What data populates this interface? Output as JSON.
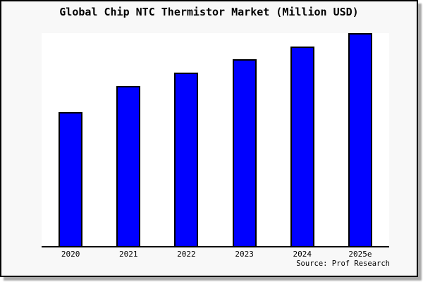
{
  "chart_data": {
    "type": "bar",
    "title": "Global Chip NTC Thermistor Market (Million USD)",
    "categories": [
      "2020",
      "2021",
      "2022",
      "2023",
      "2024",
      "2025e"
    ],
    "values_pct_of_max": [
      62.8,
      75.1,
      81.4,
      87.7,
      93.7,
      100
    ],
    "xlabel": "",
    "ylabel": "",
    "y_axis": "unlabeled (no ticks or gridlines shown)",
    "grid": false,
    "legend": "none",
    "bar_color": "#0000ff",
    "bar_border_color": "#000000",
    "plot_background": "#ffffff",
    "figure_background": "#f8f8f8",
    "source_note": "Source: Prof Research"
  }
}
